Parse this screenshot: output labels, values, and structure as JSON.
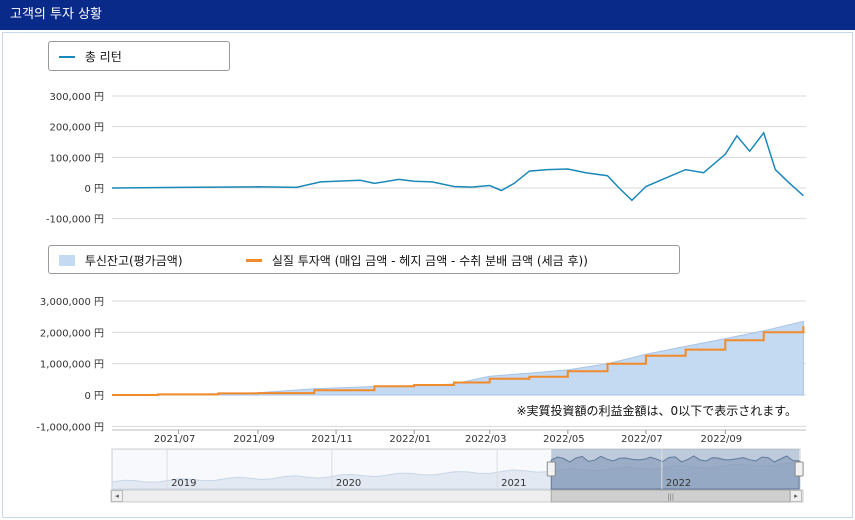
{
  "header": {
    "title": "고객의 투자 상황"
  },
  "colors": {
    "header_bg": "#0a2a8a",
    "line1": "#1a88b8",
    "area": "#c4d9f2",
    "orange": "#f08a2a",
    "navigator_selected": "#8fa6c2"
  },
  "chart_data": [
    {
      "type": "line",
      "legend_position": "top-left",
      "series": [
        {
          "name": "총 리턴",
          "x": [
            "2021-05-10",
            "2021-06-01",
            "2021-07-01",
            "2021-08-01",
            "2021-09-01",
            "2021-10-01",
            "2021-10-20",
            "2021-11-01",
            "2021-11-20",
            "2021-12-01",
            "2021-12-20",
            "2022-01-01",
            "2022-01-15",
            "2022-02-01",
            "2022-02-15",
            "2022-03-01",
            "2022-03-10",
            "2022-03-20",
            "2022-04-01",
            "2022-04-15",
            "2022-05-01",
            "2022-05-15",
            "2022-06-01",
            "2022-06-10",
            "2022-06-20",
            "2022-07-01",
            "2022-07-15",
            "2022-08-01",
            "2022-08-15",
            "2022-09-01",
            "2022-09-10",
            "2022-09-20",
            "2022-10-01",
            "2022-10-10",
            "2022-10-20",
            "2022-11-01"
          ],
          "values": [
            0,
            1000,
            2000,
            3000,
            4000,
            2000,
            20000,
            22000,
            25000,
            15000,
            28000,
            22000,
            20000,
            5000,
            3000,
            8000,
            -8000,
            15000,
            55000,
            60000,
            62000,
            50000,
            40000,
            0,
            -40000,
            5000,
            30000,
            60000,
            50000,
            110000,
            170000,
            120000,
            180000,
            60000,
            20000,
            -25000
          ]
        }
      ],
      "ylim": [
        -100000,
        300000
      ],
      "yticks": [
        "300,000 円",
        "200,000 円",
        "100,000 円",
        "0 円",
        "-100,000 円"
      ]
    },
    {
      "type": "area",
      "legend_position": "top-left",
      "series": [
        {
          "name": "투신잔고(평가금액)",
          "x": [
            "2021-05-10",
            "2021-06-15",
            "2021-08-01",
            "2021-09-01",
            "2021-10-15",
            "2021-12-01",
            "2022-01-01",
            "2022-02-01",
            "2022-03-01",
            "2022-04-01",
            "2022-05-01",
            "2022-06-01",
            "2022-07-01",
            "2022-08-01",
            "2022-09-01",
            "2022-10-01",
            "2022-11-01"
          ],
          "values": [
            0,
            10000,
            40000,
            70000,
            200000,
            270000,
            290000,
            350000,
            600000,
            700000,
            800000,
            1000000,
            1300000,
            1550000,
            1800000,
            2050000,
            2350000
          ]
        },
        {
          "name": "실질 투자액 (매입 금액 - 헤지 금액 - 수취 분배 금액 (세금 후))",
          "x": [
            "2021-05-10",
            "2021-06-15",
            "2021-08-01",
            "2021-09-01",
            "2021-10-15",
            "2021-12-01",
            "2022-01-01",
            "2022-02-01",
            "2022-03-01",
            "2022-04-01",
            "2022-05-01",
            "2022-06-01",
            "2022-07-01",
            "2022-08-01",
            "2022-09-01",
            "2022-10-01",
            "2022-11-01"
          ],
          "values": [
            0,
            20000,
            50000,
            60000,
            150000,
            280000,
            320000,
            400000,
            520000,
            580000,
            760000,
            1000000,
            1250000,
            1450000,
            1750000,
            2000000,
            2200000
          ]
        }
      ],
      "ylim": [
        -1000000,
        3000000
      ],
      "yticks": [
        "3,000,000 円",
        "2,000,000 円",
        "1,000,000 円",
        "0 円",
        "-1,000,000 円"
      ],
      "xticks": [
        "2021/07",
        "2021/09",
        "2021/11",
        "2022/01",
        "2022/03",
        "2022/05",
        "2022/07",
        "2022/09"
      ],
      "annotation": "※実質投資額の利益金額は、0以下で表示されます。"
    },
    {
      "type": "area",
      "role": "navigator",
      "xticks": [
        "2019",
        "2020",
        "2021",
        "2022"
      ],
      "selected_range": [
        "2021-05",
        "2022-11"
      ]
    }
  ]
}
